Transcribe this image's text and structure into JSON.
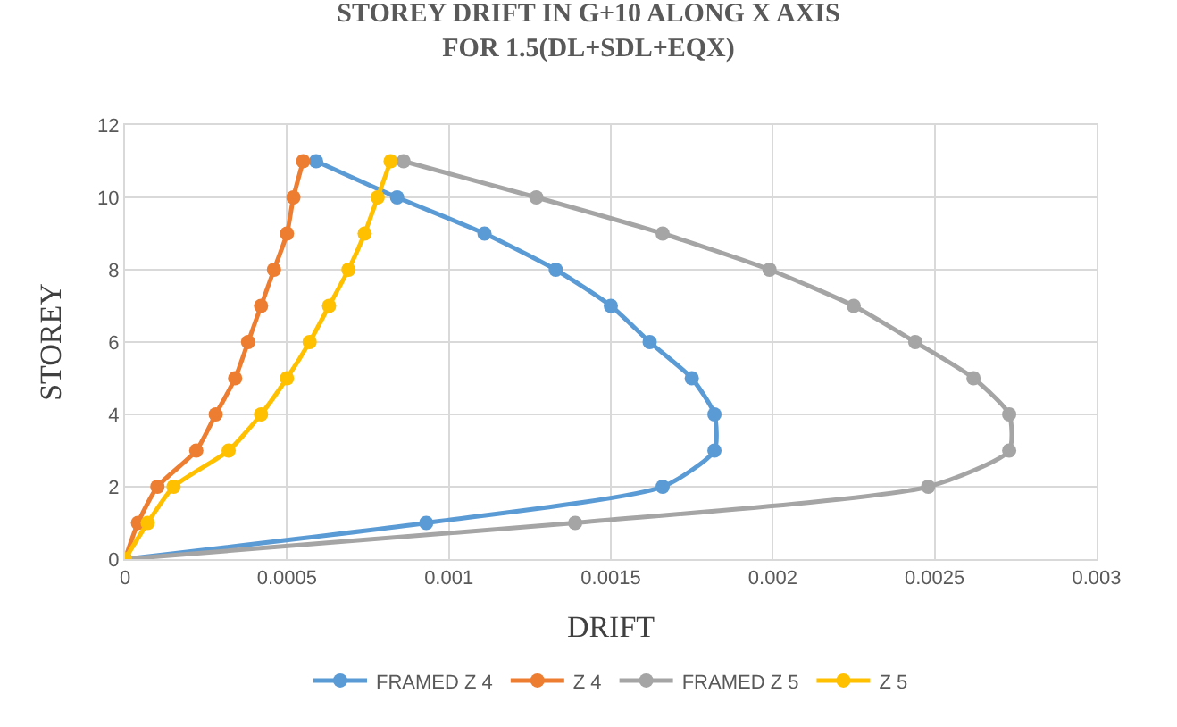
{
  "chart_data": {
    "type": "line",
    "title": "STOREY DRIFT IN G+10 ALONG X AXIS\nFOR 1.5(DL+SDL+EQX)",
    "xlabel": "DRIFT",
    "ylabel": "STOREY",
    "xlim": [
      0,
      0.003
    ],
    "xticks": [
      0,
      0.0005,
      0.001,
      0.0015,
      0.002,
      0.0025,
      0.003
    ],
    "ylim": [
      0,
      12
    ],
    "yticks": [
      0,
      2,
      4,
      6,
      8,
      10,
      12
    ],
    "grid": true,
    "legend": "bottom",
    "marker": "circle",
    "line_style": "solid",
    "series": [
      {
        "name": "FRAMED Z 4",
        "color": "#5b9bd5",
        "x": [
          0,
          0.00093,
          0.00166,
          0.00182,
          0.00182,
          0.00175,
          0.00162,
          0.0015,
          0.00133,
          0.00111,
          0.00084,
          0.00059
        ],
        "values": [
          0,
          1,
          2,
          3,
          4,
          5,
          6,
          7,
          8,
          9,
          10,
          11
        ]
      },
      {
        "name": "Z 4",
        "color": "#ed7d31",
        "x": [
          0,
          4e-05,
          0.0001,
          0.00022,
          0.00028,
          0.00034,
          0.00038,
          0.00042,
          0.00046,
          0.0005,
          0.00052,
          0.00055
        ],
        "values": [
          0,
          1,
          2,
          3,
          4,
          5,
          6,
          7,
          8,
          9,
          10,
          11
        ]
      },
      {
        "name": "FRAMED Z 5",
        "color": "#a5a5a5",
        "x": [
          0,
          0.00139,
          0.00248,
          0.00273,
          0.00273,
          0.00262,
          0.00244,
          0.00225,
          0.00199,
          0.00166,
          0.00127,
          0.00086
        ],
        "values": [
          0,
          1,
          2,
          3,
          4,
          5,
          6,
          7,
          8,
          9,
          10,
          11
        ]
      },
      {
        "name": "Z 5",
        "color": "#ffc000",
        "x": [
          0,
          7e-05,
          0.00015,
          0.00032,
          0.00042,
          0.0005,
          0.00057,
          0.00063,
          0.00069,
          0.00074,
          0.00078,
          0.00082
        ],
        "values": [
          0,
          1,
          2,
          3,
          4,
          5,
          6,
          7,
          8,
          9,
          10,
          11
        ]
      }
    ]
  }
}
